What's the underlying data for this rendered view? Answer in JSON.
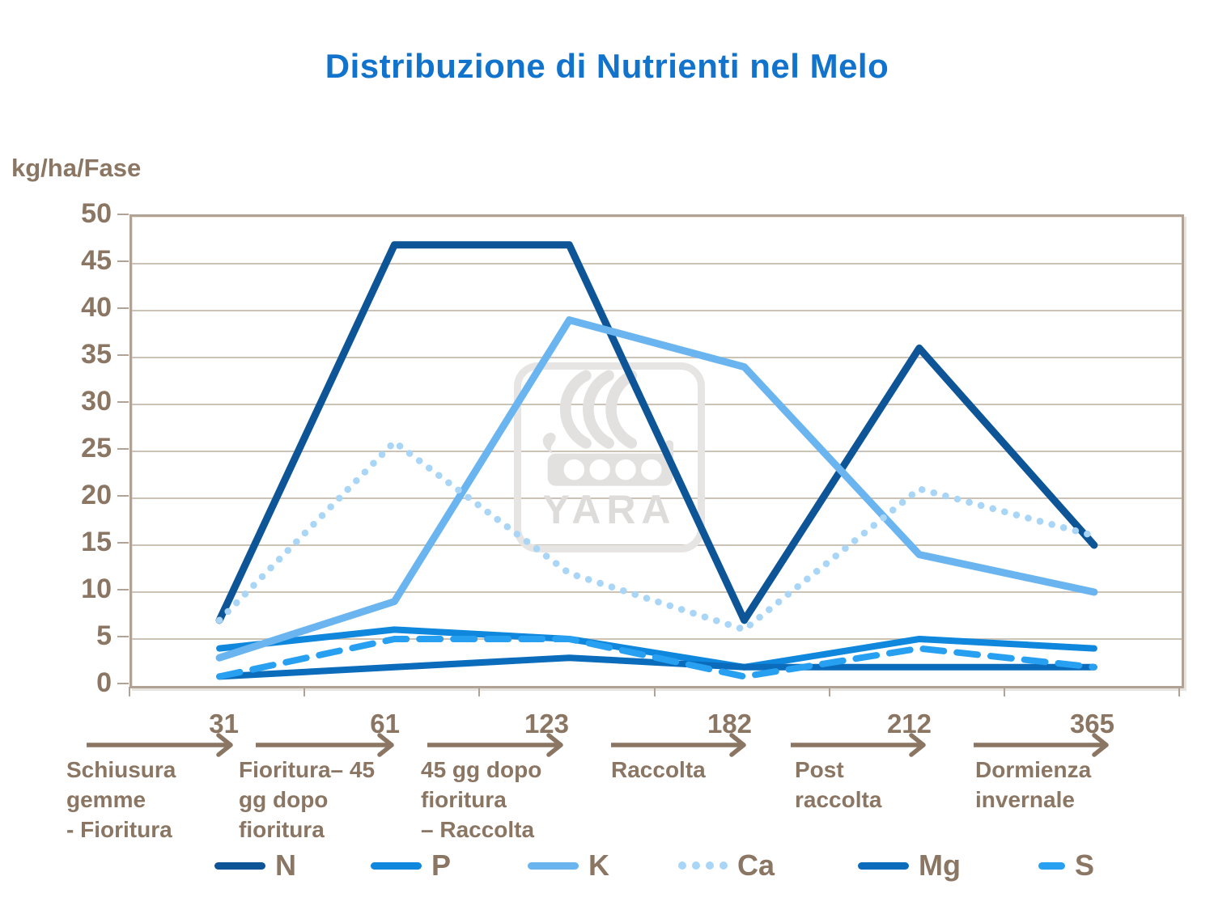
{
  "title": "Distribuzione di Nutrienti nel Melo",
  "y_axis_label": "kg/ha/Fase",
  "watermark_text": "YARA",
  "colors": {
    "title": "#1273cd",
    "axis_text": "#8a7663",
    "grid": "#ccc3b6",
    "frame": "#b0a294",
    "watermark": "#e3e1df",
    "N": "#0d5596",
    "P": "#0e87dd",
    "K": "#6ab4f0",
    "Ca": "#a9d5f7",
    "Mg": "#0c6cbc",
    "S": "#27a0f2"
  },
  "chart_data": {
    "type": "line",
    "title": "Distribuzione di Nutrienti nel Melo",
    "ylabel": "kg/ha/Fase",
    "xlabel": "",
    "ylim": [
      0,
      50
    ],
    "y_ticks": [
      0,
      5,
      10,
      15,
      20,
      25,
      30,
      35,
      40,
      45,
      50
    ],
    "grid": true,
    "legend_position": "bottom",
    "categories": [
      "31",
      "61",
      "123",
      "182",
      "212",
      "365"
    ],
    "phases": [
      {
        "tick": "31",
        "lines": [
          "Schiusura",
          "gemme",
          "- Fioritura"
        ]
      },
      {
        "tick": "61",
        "lines": [
          "Fioritura– 45",
          "gg dopo",
          "fioritura"
        ]
      },
      {
        "tick": "123",
        "lines": [
          "45 gg dopo",
          "fioritura",
          "– Raccolta"
        ]
      },
      {
        "tick": "182",
        "lines": [
          "Raccolta"
        ]
      },
      {
        "tick": "212",
        "lines": [
          "Post",
          "raccolta"
        ]
      },
      {
        "tick": "365",
        "lines": [
          "Dormienza",
          "invernale"
        ]
      }
    ],
    "series": [
      {
        "name": "N",
        "style": "solid",
        "color": "#0d5596",
        "values": [
          7,
          47,
          47,
          7,
          36,
          15
        ]
      },
      {
        "name": "P",
        "style": "solid",
        "color": "#0e87dd",
        "values": [
          4,
          6,
          5,
          2,
          5,
          4
        ]
      },
      {
        "name": "K",
        "style": "solid",
        "color": "#6ab4f0",
        "values": [
          3,
          9,
          39,
          34,
          14,
          10
        ]
      },
      {
        "name": "Ca",
        "style": "dotted",
        "color": "#a9d5f7",
        "values": [
          7,
          26,
          12,
          6,
          21,
          16
        ]
      },
      {
        "name": "Mg",
        "style": "solid",
        "color": "#0c6cbc",
        "values": [
          1,
          2,
          3,
          2,
          2,
          2
        ]
      },
      {
        "name": "S",
        "style": "dashed",
        "color": "#27a0f2",
        "values": [
          1,
          5,
          5,
          1,
          4,
          2
        ]
      }
    ]
  }
}
